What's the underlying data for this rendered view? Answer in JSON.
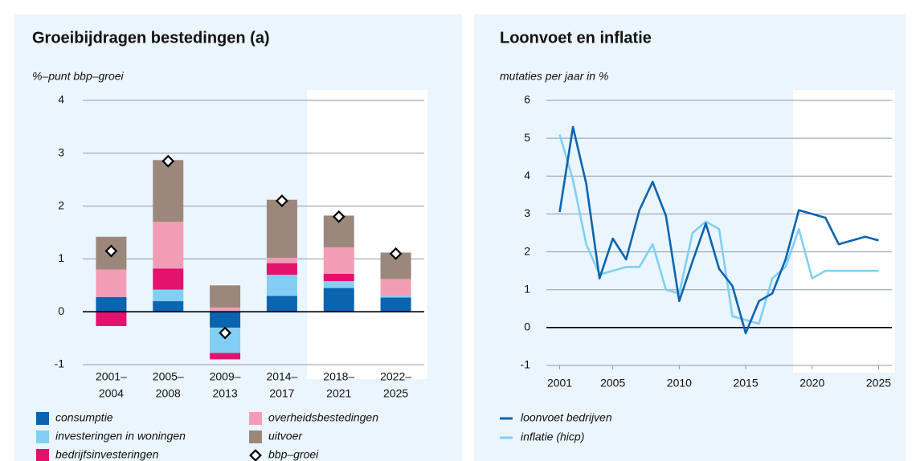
{
  "chart_data": [
    {
      "type": "bar",
      "title": "Groeibijdragen bestedingen (a)",
      "y_label": "%–punt bbp–groei",
      "categories": [
        [
          "2001–",
          "2004"
        ],
        [
          "2005–",
          "2008"
        ],
        [
          "2009–",
          "2013"
        ],
        [
          "2014–",
          "2017"
        ],
        [
          "2018–",
          "2021"
        ],
        [
          "2022–",
          "2025"
        ]
      ],
      "series": [
        {
          "name": "consumptie",
          "color": "#0b64b0",
          "values": [
            0.28,
            0.2,
            -0.3,
            0.3,
            0.45,
            0.27
          ]
        },
        {
          "name": "investeringen in woningen",
          "color": "#82cff3",
          "values": [
            0,
            0.22,
            -0.48,
            0.4,
            0.13,
            0.03
          ]
        },
        {
          "name": "bedrijfsinvesteringen",
          "color": "#e2126d",
          "values": [
            -0.27,
            0.4,
            -0.12,
            0.22,
            0.14,
            0
          ]
        },
        {
          "name": "overheidsbestedingen",
          "color": "#f29db6",
          "values": [
            0.52,
            0.88,
            0.08,
            0.1,
            0.5,
            0.32
          ]
        },
        {
          "name": "uitvoer",
          "color": "#9c877c",
          "values": [
            0.62,
            1.17,
            0.42,
            1.1,
            0.6,
            0.5
          ]
        }
      ],
      "markers": {
        "name": "bbp–groei",
        "values": [
          1.15,
          2.85,
          -0.4,
          2.1,
          1.8,
          1.1
        ]
      },
      "ylim": [
        -1,
        4
      ],
      "yticks": [
        -1,
        0,
        1,
        2,
        3,
        4
      ],
      "grid": true
    },
    {
      "type": "line",
      "title": "Loonvoet en inflatie",
      "y_label": "mutaties per jaar in %",
      "x": [
        2001,
        2002,
        2003,
        2004,
        2005,
        2006,
        2007,
        2008,
        2009,
        2010,
        2011,
        2012,
        2013,
        2014,
        2015,
        2016,
        2017,
        2018,
        2019,
        2020,
        2021,
        2022,
        2023,
        2024,
        2025
      ],
      "series": [
        {
          "name": "loonvoet bedrijven",
          "color": "#0b64b0",
          "values": [
            3.05,
            5.3,
            3.8,
            1.3,
            2.35,
            1.8,
            3.1,
            3.85,
            2.95,
            0.7,
            1.75,
            2.75,
            1.55,
            1.1,
            -0.15,
            0.7,
            0.9,
            1.8,
            3.1,
            3.0,
            2.9,
            2.2,
            2.3,
            2.4,
            2.3
          ]
        },
        {
          "name": "inflatie (hicp)",
          "color": "#82cff3",
          "values": [
            5.1,
            3.9,
            2.2,
            1.4,
            1.5,
            1.6,
            1.6,
            2.2,
            1.0,
            0.9,
            2.5,
            2.8,
            2.6,
            0.3,
            0.2,
            0.1,
            1.3,
            1.6,
            2.6,
            1.3,
            1.5,
            1.5,
            1.5,
            1.5,
            1.5
          ]
        }
      ],
      "xlim": [
        2000,
        2026
      ],
      "xticks": [
        2001,
        2005,
        2010,
        2015,
        2020,
        2025
      ],
      "ylim": [
        -1,
        6
      ],
      "yticks": [
        -1,
        0,
        1,
        2,
        3,
        4,
        5,
        6
      ],
      "grid": true
    }
  ]
}
